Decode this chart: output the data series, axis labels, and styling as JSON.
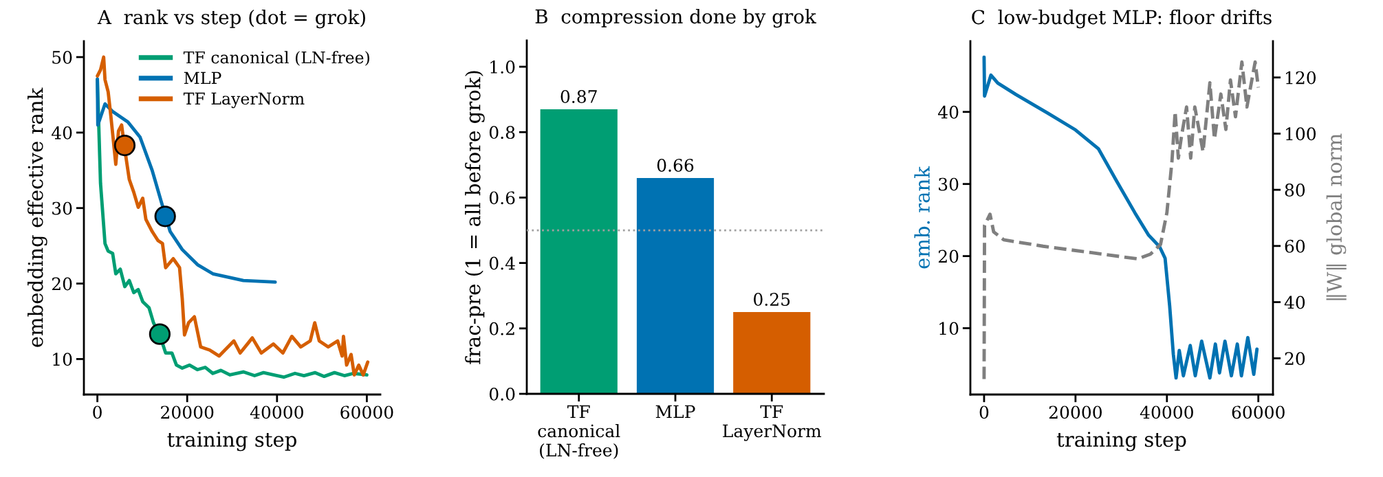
{
  "chart_data": [
    {
      "type": "line",
      "title": "A  rank vs step (dot = grok)",
      "xlabel": "training step",
      "ylabel": "embedding effective rank",
      "xlim": [
        -3000,
        63000
      ],
      "ylim": [
        5.3,
        52.1
      ],
      "xticks": [
        0,
        20000,
        40000,
        60000
      ],
      "yticks": [
        10,
        20,
        30,
        40,
        50
      ],
      "grid": false,
      "legend": "top right",
      "series": [
        {
          "name": "TF canonical (LN-free)",
          "color": "#009e73",
          "x": [
            0,
            700,
            1700,
            2400,
            3400,
            4100,
            5100,
            6100,
            7100,
            8100,
            9100,
            10100,
            11500,
            12500,
            13900,
            15200,
            16600,
            17600,
            18900,
            20500,
            22300,
            24000,
            25700,
            27500,
            29500,
            32500,
            35000,
            37000,
            39200,
            41500,
            44000,
            46000,
            48500,
            50500,
            52800,
            55000,
            57000,
            60000
          ],
          "values": [
            47,
            33.3,
            25.3,
            24.3,
            24,
            21.3,
            21.9,
            19.6,
            20.4,
            18.8,
            19.2,
            17.6,
            16.8,
            14.8,
            13.2,
            10.8,
            10.8,
            9.2,
            8.8,
            9.2,
            8.6,
            8.9,
            8.1,
            8.5,
            7.9,
            8.3,
            7.8,
            8.2,
            7.9,
            7.6,
            8.1,
            7.8,
            8.2,
            7.7,
            8.2,
            7.8,
            8.1,
            7.9
          ]
        },
        {
          "name": "MLP",
          "color": "#0072b2",
          "x": [
            0,
            100,
            1700,
            3400,
            6800,
            9500,
            12200,
            14200,
            16200,
            18900,
            22300,
            25700,
            32500,
            39600
          ],
          "values": [
            47.1,
            41,
            43.8,
            42.8,
            41.4,
            39.4,
            35,
            30.9,
            26.9,
            24.5,
            22.5,
            21.3,
            20.4,
            20.2
          ]
        },
        {
          "name": "TF LayerNorm",
          "color": "#d55e00",
          "x": [
            0,
            700,
            1400,
            1700,
            2400,
            3000,
            4100,
            4700,
            5400,
            6100,
            7100,
            8100,
            9100,
            10100,
            10800,
            12200,
            13500,
            14500,
            15200,
            16900,
            18300,
            18900,
            19400,
            20300,
            21600,
            23000,
            25000,
            27100,
            30400,
            31800,
            34500,
            36500,
            39200,
            41300,
            43300,
            45300,
            47400,
            48400,
            49400,
            51400,
            53500,
            54500,
            54800,
            55500,
            56500,
            57200,
            58200,
            59200,
            60200
          ],
          "values": [
            47.5,
            48.3,
            50,
            47,
            45.4,
            42.2,
            35.8,
            40.2,
            41,
            37.8,
            33.8,
            32.1,
            30.1,
            31.3,
            28.5,
            26.9,
            25.7,
            25.3,
            22.1,
            23.3,
            22.1,
            18,
            13.2,
            14.8,
            15.6,
            11.6,
            11.2,
            10.4,
            12.4,
            10.8,
            12.8,
            10.8,
            12,
            10.8,
            13,
            11.6,
            12.4,
            14.8,
            12.4,
            11.6,
            12.4,
            10.4,
            13,
            9.2,
            10.6,
            7.9,
            9.2,
            7.9,
            9.6
          ]
        },
        {
          "type": "scatter",
          "marker": "circle",
          "color": "#009e73",
          "x": [
            13900
          ],
          "values": [
            13.3
          ]
        },
        {
          "type": "scatter",
          "marker": "circle",
          "color": "#0072b2",
          "x": [
            15100
          ],
          "values": [
            28.9
          ]
        },
        {
          "type": "scatter",
          "marker": "circle",
          "color": "#d55e00",
          "x": [
            6100
          ],
          "values": [
            38.3
          ]
        }
      ]
    },
    {
      "type": "bar",
      "title": "B  compression done by grok",
      "ylabel": "frac-pre (1 = all before grok)",
      "categories": [
        "TF\ncanonical\n(LN-free)",
        "MLP",
        "TF\nLayerNorm"
      ],
      "values": [
        0.87,
        0.66,
        0.25
      ],
      "colors": [
        "#009e73",
        "#0072b2",
        "#d55e00"
      ],
      "ylim": [
        0,
        1.08
      ],
      "yticks": [
        {
          "value": 0,
          "label": "0.0"
        },
        0.2,
        0.4,
        0.6,
        0.8,
        {
          "value": 1,
          "label": "1.0"
        }
      ],
      "data_labels": true,
      "grid": false,
      "ref_lines": [
        {
          "axis": "y",
          "value": 0.5,
          "color": "#a0a0a0",
          "line_style": "dotted"
        }
      ]
    },
    {
      "type": "line",
      "title": "C  low-budget MLP: floor drifts",
      "xlabel": "training step",
      "ylabel": "emb. rank",
      "y2label": "‖W‖ global norm",
      "xlim": [
        -3000,
        63200
      ],
      "ylim": [
        0.8,
        49.8
      ],
      "y2lim": [
        7.1,
        132.9
      ],
      "xticks": [
        0,
        20000,
        40000,
        60000
      ],
      "yticks": [
        10,
        20,
        30,
        40
      ],
      "y2ticks": [
        20,
        40,
        60,
        80,
        100,
        120
      ],
      "grid": false,
      "series": [
        {
          "color": "#0072b2",
          "line_style": "solid",
          "x": [
            0,
            100,
            1500,
            3000,
            7000,
            14000,
            20000,
            25000,
            29000,
            33000,
            36000,
            38400,
            39600,
            40600,
            41400,
            42000,
            42700,
            43600,
            45100,
            46200,
            47600,
            49400,
            50600,
            51500,
            52700,
            54100,
            55400,
            56300,
            57700,
            59000,
            59700
          ],
          "values": [
            47.6,
            42.2,
            45.1,
            44,
            42.4,
            39.8,
            37.5,
            34.9,
            30.4,
            26,
            22.9,
            21.3,
            19.7,
            13.1,
            6.4,
            3.1,
            6.9,
            3.4,
            7.6,
            3.4,
            8.2,
            3.1,
            7.8,
            3.8,
            8.2,
            3.4,
            7.8,
            3.4,
            8.7,
            3.6,
            7.1
          ]
        },
        {
          "color": "#7f7f7f",
          "axis": "y2",
          "line_style": "dashed",
          "x": [
            0,
            100,
            1300,
            2100,
            4300,
            12900,
            23600,
            33600,
            36400,
            38600,
            40000,
            41100,
            41800,
            42500,
            43200,
            44300,
            45200,
            46100,
            47900,
            49400,
            50400,
            51800,
            52900,
            53900,
            55000,
            56400,
            57500,
            59300,
            60000
          ],
          "values": [
            12.6,
            67.3,
            71.3,
            65,
            62.2,
            59.9,
            57.6,
            55.4,
            57.1,
            60.5,
            71.9,
            90.1,
            107.8,
            91.3,
            99.2,
            109.5,
            91.3,
            109.5,
            93.6,
            118.1,
            98.1,
            114.1,
            101.5,
            119.1,
            106,
            125.5,
            109.5,
            125.5,
            116.4
          ]
        }
      ]
    }
  ]
}
